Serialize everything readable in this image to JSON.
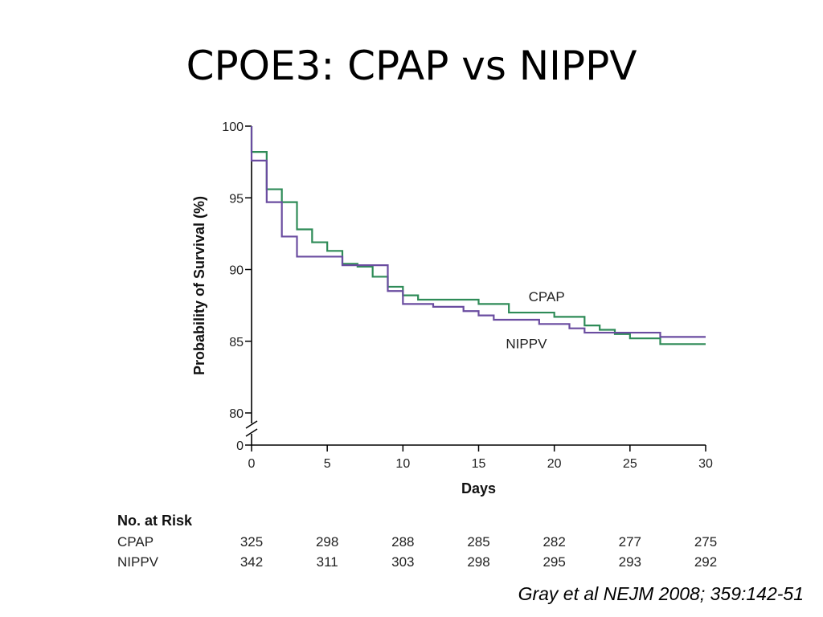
{
  "slide": {
    "title": "CPOE3: CPAP vs NIPPV",
    "citation": "Gray et al NEJM 2008; 359:142-51"
  },
  "chart_data": {
    "type": "line",
    "step": true,
    "xlabel": "Days",
    "ylabel": "Probability of Survival (%)",
    "xlim": [
      0,
      30
    ],
    "ylim": [
      80,
      100
    ],
    "y_axis_break": true,
    "y_break_tick": "0",
    "x_ticks": [
      0,
      5,
      10,
      15,
      20,
      25,
      30
    ],
    "y_ticks": [
      80,
      85,
      90,
      95,
      100
    ],
    "grid": false,
    "legend": "inline labels",
    "colors": {
      "CPAP": "#2e8b57",
      "NIPPV": "#6a4ca0"
    },
    "series": [
      {
        "name": "CPAP",
        "label_position_x": 18.3,
        "label_position_y": 87.8,
        "steps": [
          [
            0,
            100
          ],
          [
            0,
            98.2
          ],
          [
            1,
            95.6
          ],
          [
            2,
            94.7
          ],
          [
            3,
            92.8
          ],
          [
            4,
            91.9
          ],
          [
            5,
            91.3
          ],
          [
            6,
            90.4
          ],
          [
            7,
            90.2
          ],
          [
            8,
            89.5
          ],
          [
            9,
            88.8
          ],
          [
            10,
            88.2
          ],
          [
            11,
            87.9
          ],
          [
            15,
            87.6
          ],
          [
            17,
            87.0
          ],
          [
            20,
            86.7
          ],
          [
            22,
            86.1
          ],
          [
            23,
            85.8
          ],
          [
            24,
            85.5
          ],
          [
            25,
            85.2
          ],
          [
            27,
            84.8
          ],
          [
            30,
            84.8
          ]
        ]
      },
      {
        "name": "NIPPV",
        "label_position_x": 16.8,
        "label_position_y": 84.5,
        "steps": [
          [
            0,
            100
          ],
          [
            0,
            97.6
          ],
          [
            1,
            94.7
          ],
          [
            2,
            92.3
          ],
          [
            3,
            90.9
          ],
          [
            6,
            90.3
          ],
          [
            9,
            88.5
          ],
          [
            10,
            87.6
          ],
          [
            12,
            87.4
          ],
          [
            14,
            87.1
          ],
          [
            15,
            86.8
          ],
          [
            16,
            86.5
          ],
          [
            19,
            86.2
          ],
          [
            21,
            85.9
          ],
          [
            22,
            85.6
          ],
          [
            27,
            85.3
          ],
          [
            30,
            85.3
          ]
        ]
      }
    ],
    "risk_table": {
      "title": "No. at Risk",
      "days": [
        0,
        5,
        10,
        15,
        20,
        25,
        30
      ],
      "rows": [
        {
          "name": "CPAP",
          "values": [
            "325",
            "298",
            "288",
            "285",
            "282",
            "277",
            "275"
          ]
        },
        {
          "name": "NIPPV",
          "values": [
            "342",
            "311",
            "303",
            "298",
            "295",
            "293",
            "292"
          ]
        }
      ]
    }
  }
}
